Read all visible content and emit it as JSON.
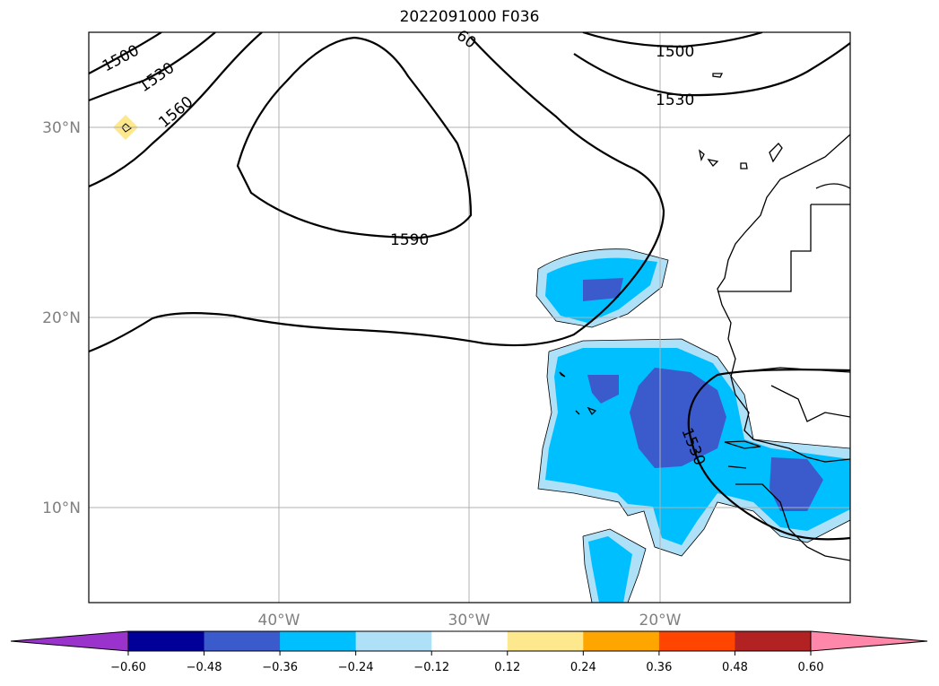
{
  "title": "2022091000 F036",
  "lat_labels": [
    "30°N",
    "20°N",
    "10°N"
  ],
  "lon_labels": [
    "40°W",
    "30°W",
    "20°W"
  ],
  "contour_labels": [
    "1500",
    "1530",
    "1560",
    "1590",
    "1500",
    "1530",
    "1530",
    "60"
  ],
  "colorbar": {
    "ticks": [
      "−0.60",
      "−0.48",
      "−0.36",
      "−0.24",
      "−0.12",
      "0.12",
      "0.24",
      "0.36",
      "0.48",
      "0.60"
    ],
    "colors": [
      "#9933cc",
      "#000099",
      "#3b5bcc",
      "#00bfff",
      "#aee0f7",
      "#ffffff",
      "#fde88e",
      "#ffa500",
      "#ff4500",
      "#b22222",
      "#ff88aa"
    ]
  },
  "map": {
    "projection": "Mercator",
    "lon_range": [
      "50°W",
      "10°W"
    ],
    "lat_range": [
      "5°N",
      "35°N"
    ],
    "grid": true
  }
}
